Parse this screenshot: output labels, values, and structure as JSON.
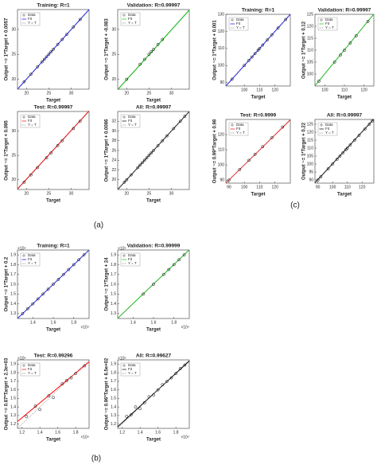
{
  "figure_labels": [
    "(a)",
    "(b)",
    "(c)"
  ],
  "chart_data": [
    {
      "type": "scatter",
      "title": "Training: R=1",
      "xlabel": "Target",
      "ylabel": "Output ~= 1*Target + 0.0057",
      "xlim": [
        18,
        34
      ],
      "ylim": [
        18,
        34
      ],
      "xticks": [
        20,
        25,
        30
      ],
      "yticks": [
        20,
        25,
        30
      ],
      "legend": "upper left",
      "series": [
        {
          "name": "Data",
          "color": "#000000",
          "x": [
            19.5,
            21,
            22.5,
            23.5,
            24,
            24.5,
            25,
            25.5,
            26,
            27,
            28,
            29,
            30.5,
            32
          ],
          "values": [
            19.5,
            21,
            22.5,
            23.5,
            24,
            24.5,
            25,
            25.5,
            26,
            27,
            28,
            29,
            30.5,
            32
          ]
        },
        {
          "name": "Fit",
          "color": "#0000ff",
          "x": [
            18,
            34
          ],
          "values": [
            18,
            34
          ]
        },
        {
          "name": "Y = T",
          "color": "#888888",
          "x": [
            18,
            34
          ],
          "values": [
            18,
            34
          ]
        }
      ]
    },
    {
      "type": "scatter",
      "title": "Validation: R=0.99997",
      "xlabel": "Target",
      "ylabel": "Output ~= 1*Target + -0.083",
      "xlim": [
        18,
        34
      ],
      "ylim": [
        18,
        34
      ],
      "xticks": [
        20,
        25,
        30
      ],
      "yticks": [
        20,
        25,
        30
      ],
      "legend": "upper left",
      "series": [
        {
          "name": "Data",
          "color": "#000000",
          "x": [
            20,
            23,
            24,
            25,
            25.5,
            26,
            27,
            28
          ],
          "values": [
            20,
            23,
            24,
            25,
            25.5,
            26,
            27,
            28
          ]
        },
        {
          "name": "Fit",
          "color": "#00cc00",
          "x": [
            18,
            34
          ],
          "values": [
            17.9,
            33.9
          ]
        },
        {
          "name": "Y = T",
          "color": "#888888",
          "x": [
            18,
            34
          ],
          "values": [
            18,
            34
          ]
        }
      ]
    },
    {
      "type": "scatter",
      "title": "Test: R=0.99997",
      "xlabel": "Target",
      "ylabel": "Output ~= 1*Target + 0.095",
      "xlim": [
        18,
        34
      ],
      "ylim": [
        18,
        34
      ],
      "xticks": [
        20,
        25,
        30
      ],
      "yticks": [
        20,
        25,
        30
      ],
      "legend": "upper left",
      "series": [
        {
          "name": "Data",
          "color": "#000000",
          "x": [
            19.5,
            21,
            22.5,
            24.5,
            25.5,
            27,
            28,
            30.5,
            32
          ],
          "values": [
            19.5,
            21,
            22.5,
            24.5,
            25.5,
            27,
            28,
            30.5,
            32
          ]
        },
        {
          "name": "Fit",
          "color": "#ff0000",
          "x": [
            18,
            34
          ],
          "values": [
            18.1,
            34.1
          ]
        },
        {
          "name": "Y = T",
          "color": "#888888",
          "x": [
            18,
            34
          ],
          "values": [
            18,
            34
          ]
        }
      ]
    },
    {
      "type": "scatter",
      "title": "All: R=0.99997",
      "xlabel": "Target",
      "ylabel": "Output ~= 1*Target + 0.0086",
      "xlim": [
        18,
        34
      ],
      "ylim": [
        18,
        34
      ],
      "xticks": [
        20,
        25,
        30
      ],
      "yticks": [
        20,
        22,
        24,
        26,
        28,
        30,
        32
      ],
      "legend": "upper left",
      "series": [
        {
          "name": "Data",
          "color": "#000000",
          "x": [
            19.5,
            20,
            21,
            22.5,
            23,
            23.5,
            24,
            24.5,
            25,
            25.5,
            26,
            27,
            28,
            29,
            30.5,
            32,
            33
          ],
          "values": [
            19.5,
            20,
            21,
            22.5,
            23,
            23.5,
            24,
            24.5,
            25,
            25.5,
            26,
            27,
            28,
            29,
            30.5,
            32,
            33
          ]
        },
        {
          "name": "Fit",
          "color": "#000000",
          "x": [
            18,
            34
          ],
          "values": [
            18,
            34
          ]
        },
        {
          "name": "Y = T",
          "color": "#888888",
          "x": [
            18,
            34
          ],
          "values": [
            18,
            34
          ]
        }
      ]
    },
    {
      "type": "scatter",
      "title": "Training: R=1",
      "xlabel": "Target",
      "ylabel": "Output ~= 1*Target + 0.2",
      "xlim": [
        12500,
        19500
      ],
      "ylim": [
        12500,
        19500
      ],
      "x_exponent": "×10⁴",
      "y_exponent": "×10⁴",
      "xticks": [
        {
          "value": 14000,
          "label": "1.4"
        },
        {
          "value": 16000,
          "label": "1.6"
        },
        {
          "value": 18000,
          "label": "1.8"
        }
      ],
      "yticks": [
        {
          "value": 13000,
          "label": "1.3"
        },
        {
          "value": 14000,
          "label": "1.4"
        },
        {
          "value": 15000,
          "label": "1.5"
        },
        {
          "value": 16000,
          "label": "1.6"
        },
        {
          "value": 17000,
          "label": "1.7"
        },
        {
          "value": 18000,
          "label": "1.8"
        },
        {
          "value": 19000,
          "label": "1.9"
        }
      ],
      "legend": "upper left",
      "series": [
        {
          "name": "Data",
          "color": "#000000",
          "x": [
            13000,
            13500,
            14000,
            14500,
            15000,
            15500,
            16000,
            16500,
            17000,
            17500,
            18000,
            18500,
            19000
          ],
          "values": [
            13000,
            13500,
            14000,
            14500,
            15000,
            15500,
            16000,
            16500,
            17000,
            17500,
            18000,
            18500,
            19000
          ]
        },
        {
          "name": "Fit",
          "color": "#0000ff",
          "x": [
            12500,
            19500
          ],
          "values": [
            12500,
            19500
          ]
        },
        {
          "name": "Y = T",
          "color": "#888888",
          "x": [
            12500,
            19500
          ],
          "values": [
            12500,
            19500
          ]
        }
      ]
    },
    {
      "type": "scatter",
      "title": "Validation: R=0.99999",
      "xlabel": "Target",
      "ylabel": "Output ~= 1*Target + 24",
      "xlim": [
        12500,
        19500
      ],
      "ylim": [
        12500,
        19500
      ],
      "x_exponent": "×10⁴",
      "y_exponent": "×10⁴",
      "xticks": [
        {
          "value": 14000,
          "label": "1.4"
        },
        {
          "value": 16000,
          "label": "1.6"
        },
        {
          "value": 18000,
          "label": "1.8"
        }
      ],
      "yticks": [
        {
          "value": 13000,
          "label": "1.3"
        },
        {
          "value": 14000,
          "label": "1.4"
        },
        {
          "value": 15000,
          "label": "1.5"
        },
        {
          "value": 16000,
          "label": "1.6"
        },
        {
          "value": 17000,
          "label": "1.7"
        },
        {
          "value": 18000,
          "label": "1.8"
        },
        {
          "value": 19000,
          "label": "1.9"
        }
      ],
      "legend": "upper left",
      "series": [
        {
          "name": "Data",
          "color": "#000000",
          "x": [
            15000,
            16000,
            17000,
            17500,
            18000,
            18500,
            19000
          ],
          "values": [
            15000,
            16000,
            17000,
            17500,
            18000,
            18500,
            19000
          ]
        },
        {
          "name": "Fit",
          "color": "#00cc00",
          "x": [
            12500,
            19500
          ],
          "values": [
            12524,
            19524
          ]
        },
        {
          "name": "Y = T",
          "color": "#888888",
          "x": [
            12500,
            19500
          ],
          "values": [
            12500,
            19500
          ]
        }
      ]
    },
    {
      "type": "scatter",
      "title": "Test: R=0.99296",
      "xlabel": "Target",
      "ylabel": "Output ~= 0.87*Target + 2.3e+03",
      "xlim": [
        11500,
        19500
      ],
      "ylim": [
        11500,
        19500
      ],
      "x_exponent": "×10⁴",
      "y_exponent": "×10⁴",
      "xticks": [
        {
          "value": 12000,
          "label": "1.2"
        },
        {
          "value": 14000,
          "label": "1.4"
        },
        {
          "value": 16000,
          "label": "1.6"
        },
        {
          "value": 18000,
          "label": "1.8"
        }
      ],
      "yticks": [
        {
          "value": 12000,
          "label": "1.2"
        },
        {
          "value": 13000,
          "label": "1.3"
        },
        {
          "value": 14000,
          "label": "1.4"
        },
        {
          "value": 15000,
          "label": "1.5"
        },
        {
          "value": 16000,
          "label": "1.6"
        },
        {
          "value": 17000,
          "label": "1.7"
        },
        {
          "value": 18000,
          "label": "1.8"
        },
        {
          "value": 19000,
          "label": "1.9"
        }
      ],
      "legend": "upper left",
      "series": [
        {
          "name": "Data",
          "color": "#000000",
          "x": [
            12500,
            13500,
            14000,
            15000,
            15500,
            16500,
            17000,
            17500,
            18000,
            19000
          ],
          "values": [
            12900,
            14100,
            13700,
            15300,
            15100,
            16700,
            17100,
            17400,
            17900,
            18800
          ]
        },
        {
          "name": "Fit",
          "color": "#ff0000",
          "x": [
            11500,
            19500
          ],
          "values": [
            12305,
            19265
          ]
        },
        {
          "name": "Y = T",
          "color": "#888888",
          "x": [
            11500,
            19500
          ],
          "values": [
            11500,
            19500
          ]
        }
      ]
    },
    {
      "type": "scatter",
      "title": "All: R=0.99627",
      "xlabel": "Target",
      "ylabel": "Output ~= 0.96*Target + 6.5e+02",
      "xlim": [
        11500,
        19500
      ],
      "ylim": [
        11500,
        19500
      ],
      "x_exponent": "×10⁴",
      "y_exponent": "×10⁴",
      "xticks": [
        {
          "value": 12000,
          "label": "1.2"
        },
        {
          "value": 14000,
          "label": "1.4"
        },
        {
          "value": 16000,
          "label": "1.6"
        },
        {
          "value": 18000,
          "label": "1.8"
        }
      ],
      "yticks": [
        {
          "value": 12000,
          "label": "1.2"
        },
        {
          "value": 13000,
          "label": "1.3"
        },
        {
          "value": 14000,
          "label": "1.4"
        },
        {
          "value": 15000,
          "label": "1.5"
        },
        {
          "value": 16000,
          "label": "1.6"
        },
        {
          "value": 17000,
          "label": "1.7"
        },
        {
          "value": 18000,
          "label": "1.8"
        },
        {
          "value": 19000,
          "label": "1.9"
        }
      ],
      "legend": "upper left",
      "series": [
        {
          "name": "Data",
          "color": "#000000",
          "x": [
            12500,
            13000,
            13500,
            14000,
            14500,
            15000,
            15500,
            16000,
            16500,
            17000,
            17500,
            18000,
            18500,
            19000
          ],
          "values": [
            12900,
            13100,
            14000,
            13800,
            14500,
            15200,
            15400,
            16000,
            16600,
            17000,
            17400,
            17900,
            18500,
            18900
          ]
        },
        {
          "name": "Fit",
          "color": "#000000",
          "x": [
            11500,
            19500
          ],
          "values": [
            11690,
            19370
          ]
        },
        {
          "name": "Y = T",
          "color": "#888888",
          "x": [
            11500,
            19500
          ],
          "values": [
            11500,
            19500
          ]
        }
      ]
    },
    {
      "type": "scatter",
      "title": "Training: R=1",
      "xlabel": "Target",
      "ylabel": "Output ~= 1*Target + 0.001",
      "xlim": [
        88,
        130
      ],
      "ylim": [
        88,
        130
      ],
      "xticks": [
        100,
        110,
        120
      ],
      "yticks": [
        90,
        100,
        110,
        120,
        130
      ],
      "legend": "upper left",
      "series": [
        {
          "name": "Data",
          "color": "#000000",
          "x": [
            92,
            100,
            103,
            105,
            107,
            109,
            110,
            112,
            115,
            118,
            122,
            127
          ],
          "values": [
            92,
            100,
            103,
            105,
            107,
            109,
            110,
            112,
            115,
            118,
            122,
            127
          ]
        },
        {
          "name": "Fit",
          "color": "#0000ff",
          "x": [
            88,
            130
          ],
          "values": [
            88,
            130
          ]
        },
        {
          "name": "Y = T",
          "color": "#888888",
          "x": [
            88,
            130
          ],
          "values": [
            88,
            130
          ]
        }
      ]
    },
    {
      "type": "scatter",
      "title": "Validation: R=0.99997",
      "xlabel": "Target",
      "ylabel": "Output ~= 1*Target + 0.12",
      "xlim": [
        95,
        125
      ],
      "ylim": [
        95,
        125
      ],
      "xticks": [
        100,
        110,
        120
      ],
      "yticks": [
        100,
        105,
        110,
        115,
        120,
        125
      ],
      "legend": "upper left",
      "series": [
        {
          "name": "Data",
          "color": "#000000",
          "x": [
            97,
            105,
            108,
            110,
            113,
            116,
            122
          ],
          "values": [
            97,
            105,
            108,
            110,
            113,
            116,
            122
          ]
        },
        {
          "name": "Fit",
          "color": "#00cc00",
          "x": [
            95,
            125
          ],
          "values": [
            95.1,
            125.1
          ]
        },
        {
          "name": "Y = T",
          "color": "#888888",
          "x": [
            95,
            125
          ],
          "values": [
            95,
            125
          ]
        }
      ]
    },
    {
      "type": "scatter",
      "title": "Test: R=0.9999",
      "xlabel": "Target",
      "ylabel": "Output ~= 0.99*Target + 0.98",
      "xlim": [
        88,
        130
      ],
      "ylim": [
        88,
        130
      ],
      "xticks": [
        90,
        100,
        110,
        120
      ],
      "yticks": [
        90,
        100,
        110,
        120
      ],
      "legend": "upper left",
      "series": [
        {
          "name": "Data",
          "color": "#000000",
          "x": [
            90,
            97,
            103,
            107,
            112,
            118,
            125
          ],
          "values": [
            90,
            97,
            103,
            107,
            112,
            118,
            125
          ]
        },
        {
          "name": "Fit",
          "color": "#ff0000",
          "x": [
            88,
            130
          ],
          "values": [
            88.1,
            129.7
          ]
        },
        {
          "name": "Y = T",
          "color": "#888888",
          "x": [
            88,
            130
          ],
          "values": [
            88,
            130
          ]
        }
      ]
    },
    {
      "type": "scatter",
      "title": "All: R=0.99997",
      "xlabel": "Target",
      "ylabel": "Output ~= 1*Target + 0.22",
      "xlim": [
        88,
        128
      ],
      "ylim": [
        88,
        128
      ],
      "xticks": [
        90,
        100,
        110,
        120
      ],
      "yticks": [
        90,
        95,
        100,
        105,
        110,
        115,
        120,
        125
      ],
      "legend": "upper left",
      "series": [
        {
          "name": "Data",
          "color": "#000000",
          "x": [
            90,
            92,
            97,
            100,
            103,
            105,
            107,
            109,
            110,
            112,
            115,
            118,
            122,
            125,
            127
          ],
          "values": [
            90,
            92,
            97,
            100,
            103,
            105,
            107,
            109,
            110,
            112,
            115,
            118,
            122,
            125,
            127
          ]
        },
        {
          "name": "Fit",
          "color": "#000000",
          "x": [
            88,
            128
          ],
          "values": [
            88.2,
            128.2
          ]
        },
        {
          "name": "Y = T",
          "color": "#888888",
          "x": [
            88,
            128
          ],
          "values": [
            88,
            128
          ]
        }
      ]
    }
  ]
}
